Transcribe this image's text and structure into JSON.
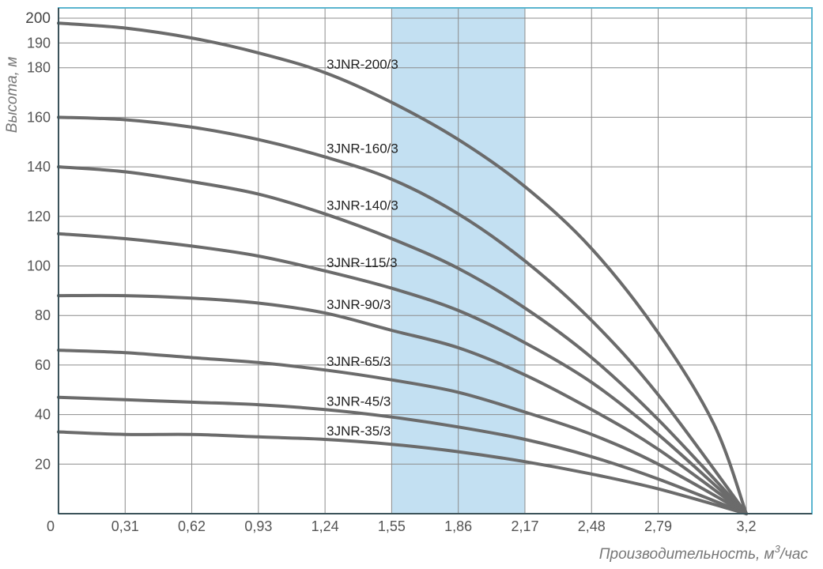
{
  "chart_data": {
    "type": "line",
    "title": "",
    "xlabel": "Производительность, м",
    "xlabel_sup": "3",
    "xlabel_suffix": "/час",
    "ylabel": "Высота, м",
    "xlim": [
      0,
      3.5
    ],
    "ylim": [
      0,
      200
    ],
    "x_ticks": [
      0.31,
      0.62,
      0.93,
      1.24,
      1.55,
      1.86,
      2.17,
      2.48,
      2.79,
      3.2
    ],
    "x_tick_labels": [
      "0,31",
      "0,62",
      "0,93",
      "1,24",
      "1,55",
      "1,86",
      "2,17",
      "2,48",
      "2,79",
      "3,2"
    ],
    "y_ticks": [
      20,
      40,
      60,
      80,
      100,
      120,
      140,
      160,
      180,
      190,
      200
    ],
    "y_tick_labels": [
      "20",
      "40",
      "60",
      "80",
      "100",
      "120",
      "140",
      "160",
      "180",
      "190",
      "200"
    ],
    "origin_label": "0",
    "highlight_band": {
      "x_start": 1.55,
      "x_end": 2.17,
      "color": "#c3e0f2"
    },
    "grid": true,
    "frame_color": "#5bb5cf",
    "line_color": "#6b6b6b",
    "series": [
      {
        "name": "3JNR-200/3",
        "x": [
          0,
          0.31,
          0.62,
          0.93,
          1.24,
          1.55,
          1.86,
          2.17,
          2.48,
          2.79,
          3.05,
          3.2
        ],
        "y": [
          198,
          196,
          192,
          186,
          178,
          166,
          151,
          132,
          107,
          73,
          36,
          0
        ]
      },
      {
        "name": "3JNR-160/3",
        "x": [
          0,
          0.31,
          0.62,
          0.93,
          1.24,
          1.55,
          1.86,
          2.17,
          2.48,
          2.79,
          3.2
        ],
        "y": [
          160,
          159,
          156,
          151,
          144,
          135,
          121,
          102,
          78,
          48,
          0
        ]
      },
      {
        "name": "3JNR-140/3",
        "x": [
          0,
          0.31,
          0.62,
          0.93,
          1.24,
          1.55,
          1.86,
          2.17,
          2.48,
          2.79,
          3.2
        ],
        "y": [
          140,
          138,
          134,
          129,
          121,
          111,
          99,
          83,
          63,
          38,
          0
        ]
      },
      {
        "name": "3JNR-115/3",
        "x": [
          0,
          0.31,
          0.62,
          0.93,
          1.24,
          1.55,
          1.86,
          2.17,
          2.48,
          2.79,
          3.2
        ],
        "y": [
          113,
          111,
          108,
          104,
          98,
          91,
          82,
          69,
          53,
          32,
          0
        ]
      },
      {
        "name": "3JNR-90/3",
        "x": [
          0,
          0.31,
          0.62,
          0.93,
          1.24,
          1.55,
          1.86,
          2.17,
          2.48,
          2.79,
          3.2
        ],
        "y": [
          88,
          88,
          87,
          85,
          81,
          74,
          67,
          56,
          42,
          26,
          0
        ]
      },
      {
        "name": "3JNR-65/3",
        "x": [
          0,
          0.31,
          0.62,
          0.93,
          1.24,
          1.55,
          1.86,
          2.17,
          2.48,
          2.79,
          3.2
        ],
        "y": [
          66,
          65,
          63,
          61,
          58,
          54,
          49,
          41,
          32,
          20,
          0
        ]
      },
      {
        "name": "3JNR-45/3",
        "x": [
          0,
          0.31,
          0.62,
          0.93,
          1.24,
          1.55,
          1.86,
          2.17,
          2.48,
          2.79,
          3.2
        ],
        "y": [
          47,
          46,
          45,
          44,
          42,
          39,
          35,
          30,
          23,
          14,
          0
        ]
      },
      {
        "name": "3JNR-35/3",
        "x": [
          0,
          0.31,
          0.62,
          0.93,
          1.24,
          1.55,
          1.86,
          2.17,
          2.48,
          2.79,
          3.2
        ],
        "y": [
          33,
          32,
          32,
          31,
          30,
          28,
          25,
          21,
          16,
          10,
          0
        ]
      }
    ]
  }
}
